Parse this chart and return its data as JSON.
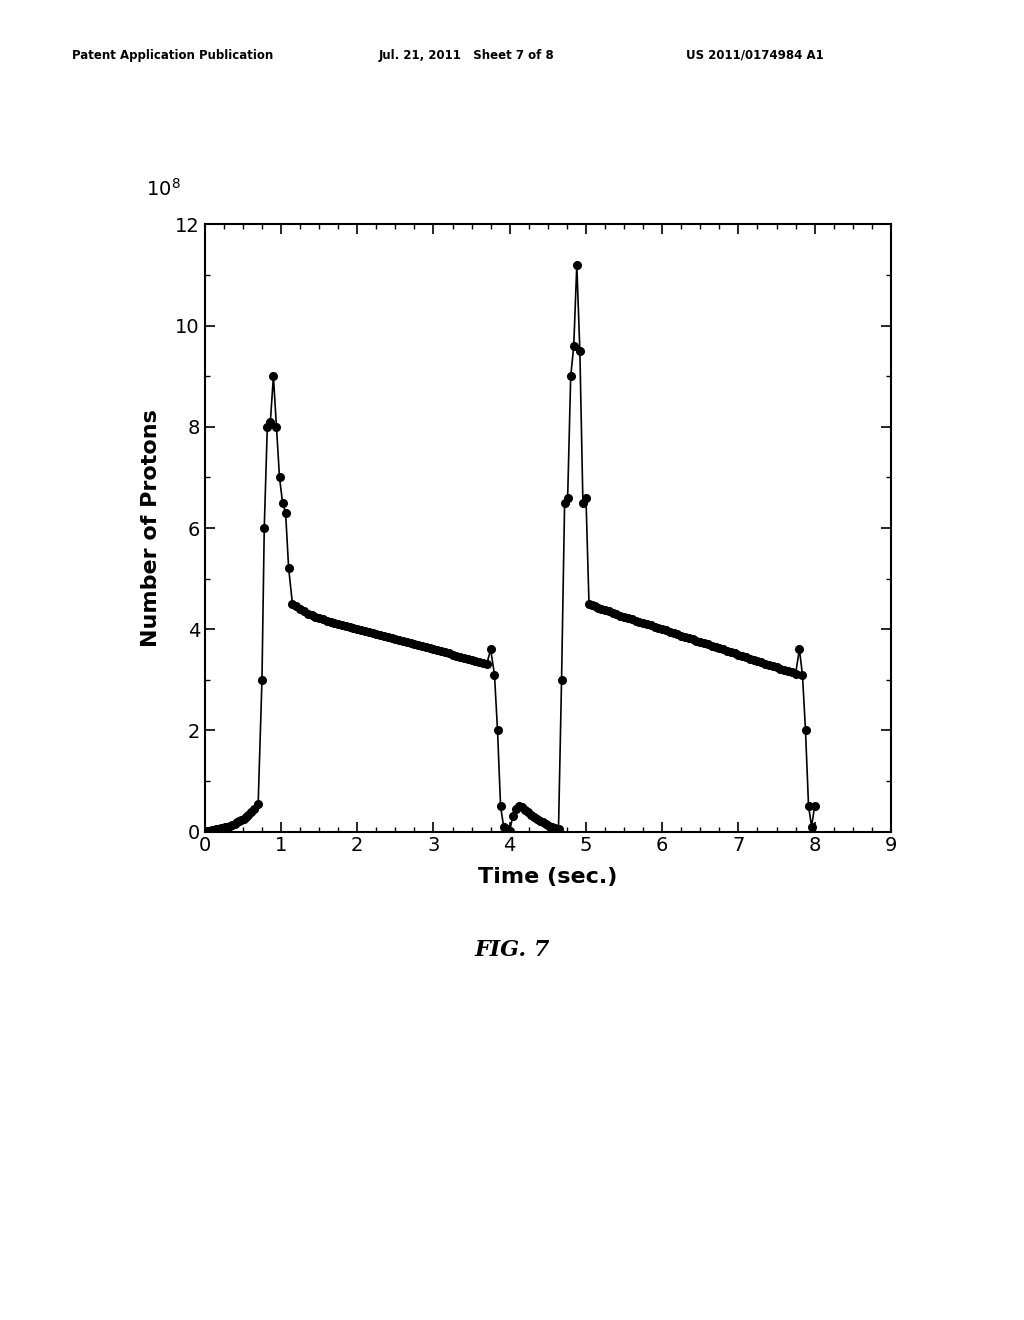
{
  "x": [
    0.0,
    0.03,
    0.06,
    0.09,
    0.12,
    0.15,
    0.18,
    0.21,
    0.24,
    0.27,
    0.3,
    0.33,
    0.36,
    0.39,
    0.42,
    0.45,
    0.48,
    0.51,
    0.54,
    0.57,
    0.6,
    0.65,
    0.7,
    0.75,
    0.78,
    0.82,
    0.86,
    0.9,
    0.94,
    0.98,
    1.02,
    1.06,
    1.1,
    1.15,
    1.2,
    1.25,
    1.3,
    1.35,
    1.4,
    1.45,
    1.5,
    1.55,
    1.6,
    1.65,
    1.7,
    1.75,
    1.8,
    1.85,
    1.9,
    1.95,
    2.0,
    2.05,
    2.1,
    2.15,
    2.2,
    2.25,
    2.3,
    2.35,
    2.4,
    2.45,
    2.5,
    2.55,
    2.6,
    2.65,
    2.7,
    2.75,
    2.8,
    2.85,
    2.9,
    2.95,
    3.0,
    3.05,
    3.1,
    3.15,
    3.2,
    3.25,
    3.3,
    3.35,
    3.4,
    3.45,
    3.5,
    3.55,
    3.6,
    3.65,
    3.7,
    3.75,
    3.8,
    3.84,
    3.88,
    3.92,
    3.96,
    4.0,
    4.04,
    4.08,
    4.12,
    4.16,
    4.2,
    4.24,
    4.28,
    4.32,
    4.36,
    4.4,
    4.44,
    4.48,
    4.52,
    4.56,
    4.6,
    4.64,
    4.68,
    4.72,
    4.76,
    4.8,
    4.84,
    4.88,
    4.92,
    4.96,
    5.0,
    5.04,
    5.08,
    5.12,
    5.16,
    5.2,
    5.25,
    5.3,
    5.35,
    5.4,
    5.45,
    5.5,
    5.55,
    5.6,
    5.65,
    5.7,
    5.75,
    5.8,
    5.85,
    5.9,
    5.95,
    6.0,
    6.05,
    6.1,
    6.15,
    6.2,
    6.25,
    6.3,
    6.35,
    6.4,
    6.45,
    6.5,
    6.55,
    6.6,
    6.65,
    6.7,
    6.75,
    6.8,
    6.85,
    6.9,
    6.95,
    7.0,
    7.05,
    7.1,
    7.15,
    7.2,
    7.25,
    7.3,
    7.35,
    7.4,
    7.45,
    7.5,
    7.55,
    7.6,
    7.65,
    7.7,
    7.75,
    7.8,
    7.84,
    7.88,
    7.92,
    7.96,
    8.0
  ],
  "y": [
    0.0,
    0.01,
    0.02,
    0.03,
    0.04,
    0.05,
    0.06,
    0.07,
    0.08,
    0.09,
    0.1,
    0.12,
    0.14,
    0.16,
    0.18,
    0.2,
    0.22,
    0.25,
    0.28,
    0.32,
    0.38,
    0.45,
    0.55,
    3.0,
    6.0,
    8.0,
    8.1,
    9.0,
    8.0,
    7.0,
    6.5,
    6.3,
    5.2,
    4.5,
    4.45,
    4.4,
    4.35,
    4.3,
    4.28,
    4.25,
    4.22,
    4.2,
    4.17,
    4.15,
    4.12,
    4.1,
    4.08,
    4.06,
    4.04,
    4.02,
    4.0,
    3.98,
    3.96,
    3.94,
    3.92,
    3.9,
    3.88,
    3.86,
    3.84,
    3.82,
    3.8,
    3.78,
    3.76,
    3.74,
    3.72,
    3.7,
    3.68,
    3.66,
    3.64,
    3.62,
    3.6,
    3.58,
    3.56,
    3.54,
    3.52,
    3.5,
    3.48,
    3.46,
    3.44,
    3.42,
    3.4,
    3.38,
    3.36,
    3.34,
    3.32,
    3.6,
    3.1,
    2.0,
    0.5,
    0.1,
    0.05,
    0.02,
    0.3,
    0.45,
    0.5,
    0.48,
    0.42,
    0.38,
    0.32,
    0.28,
    0.24,
    0.2,
    0.18,
    0.15,
    0.12,
    0.1,
    0.08,
    0.06,
    3.0,
    6.5,
    6.6,
    9.0,
    9.6,
    11.2,
    9.5,
    6.5,
    6.6,
    4.5,
    4.48,
    4.45,
    4.42,
    4.4,
    4.38,
    4.35,
    4.32,
    4.3,
    4.27,
    4.25,
    4.22,
    4.2,
    4.17,
    4.15,
    4.12,
    4.1,
    4.08,
    4.05,
    4.02,
    4.0,
    3.98,
    3.95,
    3.92,
    3.9,
    3.87,
    3.85,
    3.82,
    3.8,
    3.77,
    3.75,
    3.72,
    3.7,
    3.67,
    3.65,
    3.62,
    3.6,
    3.57,
    3.55,
    3.52,
    3.5,
    3.47,
    3.45,
    3.42,
    3.4,
    3.37,
    3.35,
    3.32,
    3.3,
    3.27,
    3.25,
    3.22,
    3.2,
    3.17,
    3.15,
    3.12,
    3.6,
    3.1,
    2.0,
    0.5,
    0.1,
    0.5
  ],
  "xlabel": "Time (sec.)",
  "ylabel": "Number of Protons",
  "fig_label": "FIG. 7",
  "header_left": "Patent Application Publication",
  "header_center": "Jul. 21, 2011   Sheet 7 of 8",
  "header_right": "US 2011/0174984 A1",
  "xlim": [
    0,
    9
  ],
  "ylim": [
    0,
    12
  ],
  "xticks": [
    0,
    1,
    2,
    3,
    4,
    5,
    6,
    7,
    8,
    9
  ],
  "yticks": [
    0,
    2,
    4,
    6,
    8,
    10,
    12
  ],
  "background_color": "#ffffff",
  "line_color": "#000000",
  "marker_color": "#000000"
}
